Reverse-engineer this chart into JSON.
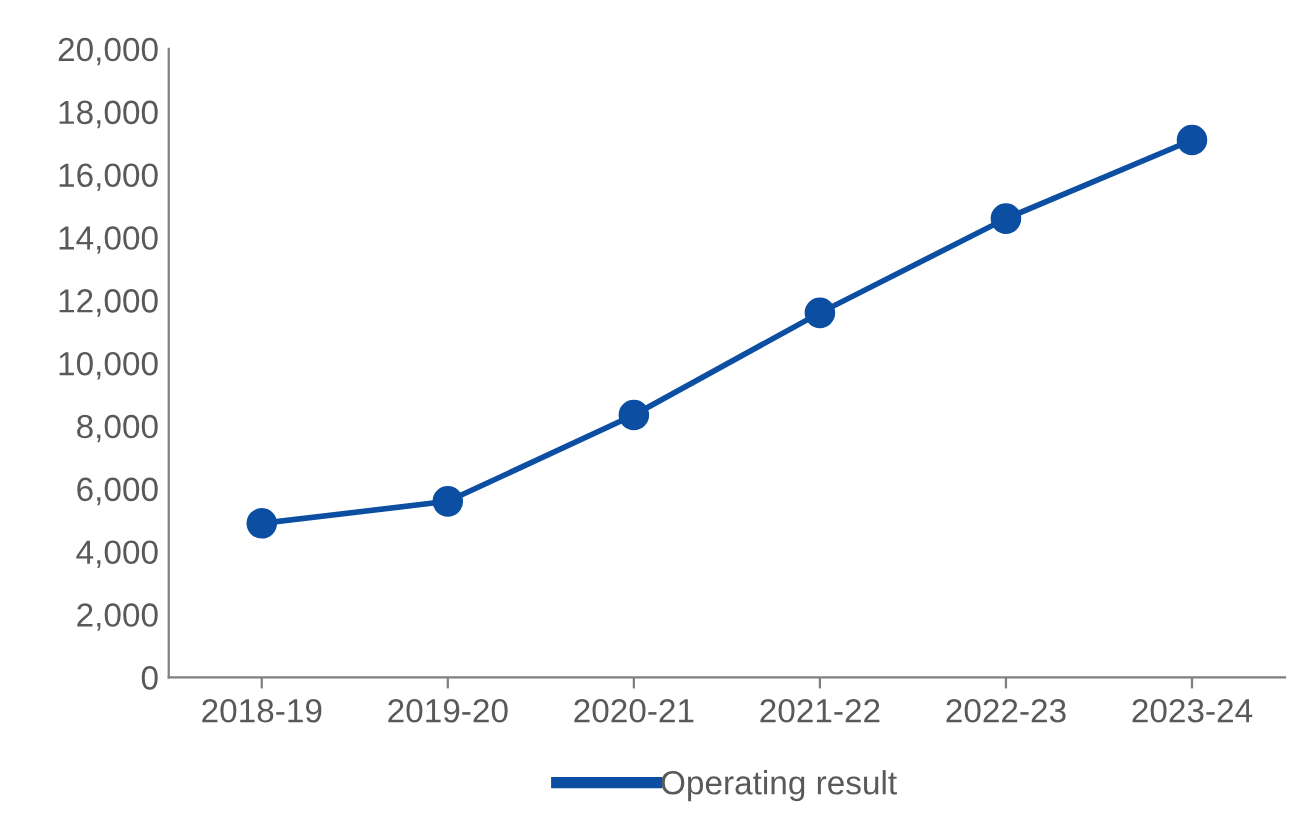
{
  "chart_data": {
    "type": "line",
    "categories": [
      "2018-19",
      "2019-20",
      "2020-21",
      "2021-22",
      "2022-23",
      "2023-24"
    ],
    "series": [
      {
        "name": "Operating result",
        "color": "#0b4ea2",
        "values": [
          4900,
          5600,
          8350,
          11600,
          14600,
          17100
        ]
      }
    ],
    "ylim": [
      0,
      20000
    ],
    "yticks": [
      {
        "value": 0,
        "label": "0"
      },
      {
        "value": 2000,
        "label": "2,000"
      },
      {
        "value": 4000,
        "label": "4,000"
      },
      {
        "value": 6000,
        "label": "6,000"
      },
      {
        "value": 8000,
        "label": "8,000"
      },
      {
        "value": 10000,
        "label": "10,000"
      },
      {
        "value": 12000,
        "label": "12,000"
      },
      {
        "value": 14000,
        "label": "14,000"
      },
      {
        "value": 16000,
        "label": "16,000"
      },
      {
        "value": 18000,
        "label": "18,000"
      },
      {
        "value": 20000,
        "label": "20,000"
      }
    ],
    "grid": false,
    "legend": "bottom",
    "marker": "circle",
    "line_style": "solid"
  }
}
